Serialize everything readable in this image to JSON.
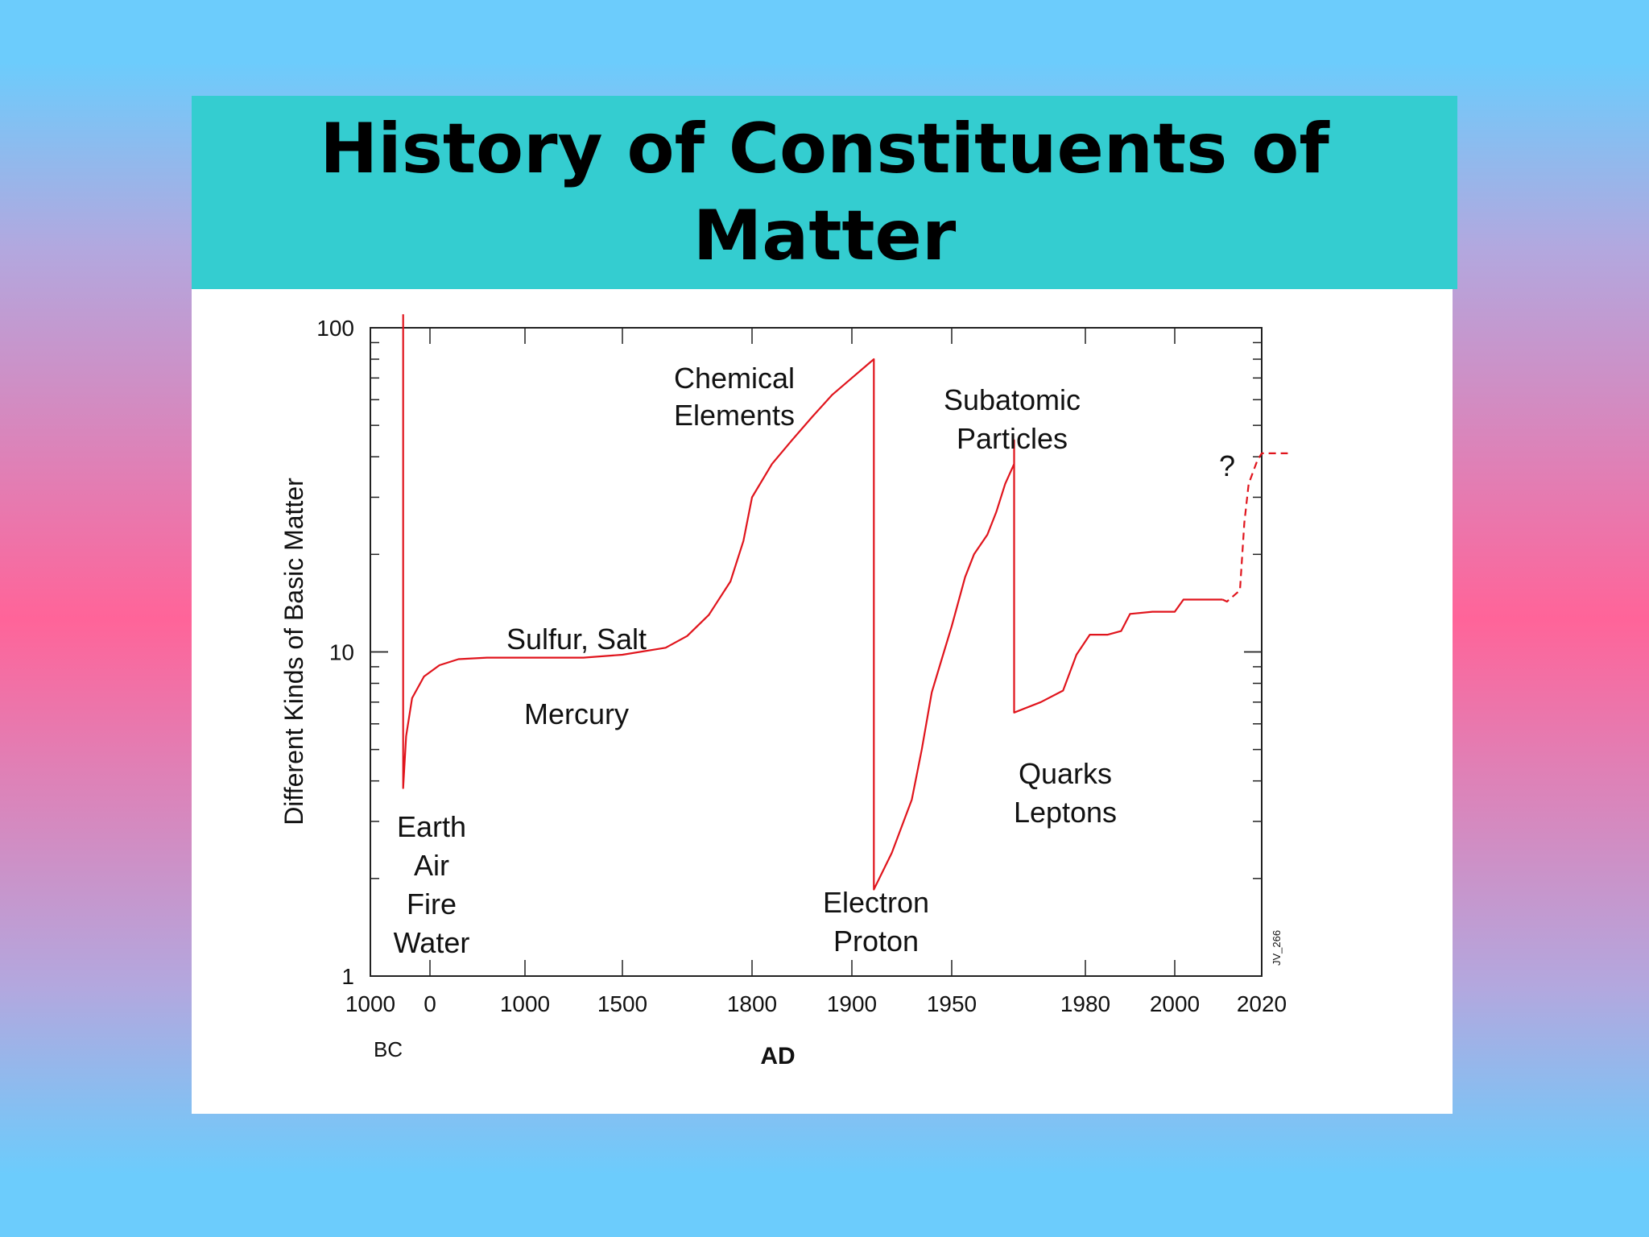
{
  "title": "History of Constituents of Matter",
  "colors": {
    "banner": "#34cdd0",
    "curve": "#e0141c"
  },
  "chart_data": {
    "type": "line",
    "title": "History of Constituents of Matter",
    "ylabel": "Different Kinds of Basic Matter",
    "xlabel": "AD",
    "y_scale": "log",
    "ylim": [
      1,
      100
    ],
    "y_ticks": [
      "1",
      "10",
      "100"
    ],
    "x_ticks": [
      "1000",
      "0",
      "1000",
      "1500",
      "1800",
      "1900",
      "1950",
      "1980",
      "2000",
      "2020"
    ],
    "x_bc_label": "BC",
    "grid": false,
    "annotations": [
      {
        "id": "classical",
        "lines": [
          "Earth",
          "Air",
          "Fire",
          "Water"
        ]
      },
      {
        "id": "sulfur",
        "lines": [
          "Sulfur, Salt"
        ]
      },
      {
        "id": "mercury",
        "lines": [
          "Mercury"
        ]
      },
      {
        "id": "chemical",
        "lines": [
          "Chemical",
          "Elements"
        ]
      },
      {
        "id": "electron",
        "lines": [
          "Electron",
          "Proton"
        ]
      },
      {
        "id": "subatomic",
        "lines": [
          "Subatomic",
          "Particles"
        ]
      },
      {
        "id": "quarks",
        "lines": [
          "Quarks",
          "Leptons"
        ]
      },
      {
        "id": "question",
        "lines": [
          "?"
        ]
      }
    ],
    "credit": "JV_266",
    "series": [
      {
        "style": "solid",
        "points": [
          {
            "x": -450,
            "y": 110
          },
          {
            "x": -450,
            "y": 3.8
          },
          {
            "x": -400,
            "y": 5.5
          },
          {
            "x": -300,
            "y": 7.2
          },
          {
            "x": -100,
            "y": 8.4
          },
          {
            "x": 100,
            "y": 9.1
          },
          {
            "x": 300,
            "y": 9.5
          },
          {
            "x": 600,
            "y": 9.6
          },
          {
            "x": 1000,
            "y": 9.6
          },
          {
            "x": 1300,
            "y": 9.6
          },
          {
            "x": 1500,
            "y": 9.8
          },
          {
            "x": 1600,
            "y": 10.3
          },
          {
            "x": 1650,
            "y": 11.2
          },
          {
            "x": 1700,
            "y": 13
          },
          {
            "x": 1750,
            "y": 16.5
          },
          {
            "x": 1780,
            "y": 22
          },
          {
            "x": 1800,
            "y": 30
          },
          {
            "x": 1820,
            "y": 38
          },
          {
            "x": 1840,
            "y": 45
          },
          {
            "x": 1860,
            "y": 53
          },
          {
            "x": 1880,
            "y": 62
          },
          {
            "x": 1900,
            "y": 70
          },
          {
            "x": 1911,
            "y": 80
          },
          {
            "x": 1911,
            "y": 1.85
          },
          {
            "x": 1920,
            "y": 2.4
          },
          {
            "x": 1930,
            "y": 3.5
          },
          {
            "x": 1935,
            "y": 5
          },
          {
            "x": 1940,
            "y": 7.5
          },
          {
            "x": 1945,
            "y": 9.5
          },
          {
            "x": 1950,
            "y": 12
          },
          {
            "x": 1953,
            "y": 17
          },
          {
            "x": 1955,
            "y": 20
          },
          {
            "x": 1958,
            "y": 23
          },
          {
            "x": 1960,
            "y": 27
          },
          {
            "x": 1962,
            "y": 33
          },
          {
            "x": 1964,
            "y": 38
          },
          {
            "x": 1964,
            "y": 45
          },
          {
            "x": 1964,
            "y": 6.5
          },
          {
            "x": 1970,
            "y": 7
          },
          {
            "x": 1975,
            "y": 7.6
          },
          {
            "x": 1978,
            "y": 9.8
          },
          {
            "x": 1981,
            "y": 11.3
          },
          {
            "x": 1985,
            "y": 11.3
          },
          {
            "x": 1988,
            "y": 11.6
          },
          {
            "x": 1990,
            "y": 13.1
          },
          {
            "x": 1995,
            "y": 13.3
          },
          {
            "x": 2000,
            "y": 13.3
          },
          {
            "x": 2002,
            "y": 14.5
          },
          {
            "x": 2008,
            "y": 14.5
          },
          {
            "x": 2011,
            "y": 14.5
          }
        ]
      },
      {
        "style": "dashed",
        "points": [
          {
            "x": 2011,
            "y": 14.5
          },
          {
            "x": 2012,
            "y": 14.3
          },
          {
            "x": 2015,
            "y": 15.5
          },
          {
            "x": 2016,
            "y": 25
          },
          {
            "x": 2017,
            "y": 33
          },
          {
            "x": 2019,
            "y": 39
          },
          {
            "x": 2020,
            "y": 41
          },
          {
            "x": 2026,
            "y": 41
          }
        ]
      }
    ]
  }
}
